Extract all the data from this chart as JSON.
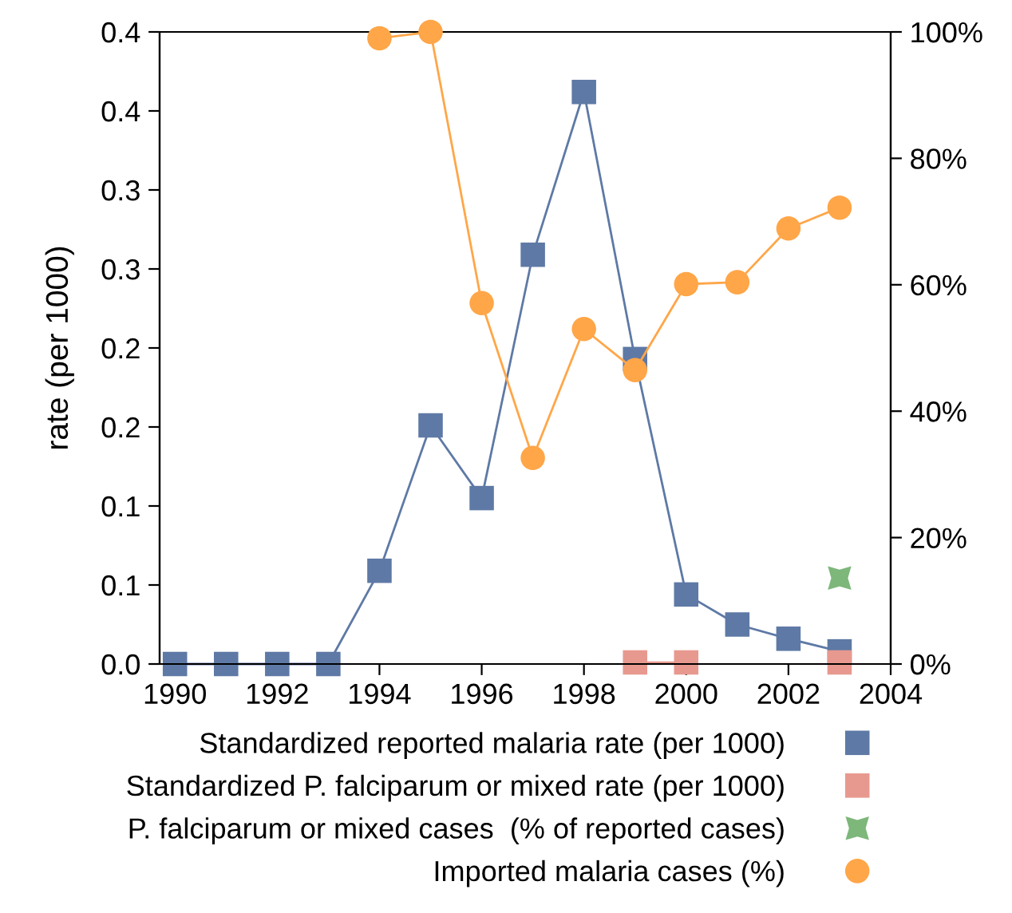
{
  "chart_data": {
    "type": "line",
    "ylabel": "rate (per 1000)",
    "x": [
      1990,
      1991,
      1992,
      1993,
      1994,
      1995,
      1996,
      1997,
      1998,
      1999,
      2000,
      2001,
      2002,
      2003
    ],
    "series": [
      {
        "name": "Standardized reported malaria rate (per 1000)",
        "color": "#5e79a5",
        "marker": "square",
        "values": [
          0,
          0,
          0,
          0,
          0.059,
          0.151,
          0.105,
          0.259,
          0.362,
          0.193,
          0.044,
          0.025,
          0.016,
          0.008
        ]
      },
      {
        "name": "Standardized P. falciparum or mixed rate (per 1000)",
        "color": "#e8998f",
        "marker": "square",
        "x": [
          1999,
          2000,
          2001,
          2002,
          2003
        ],
        "values": [
          0.001,
          0.001,
          null,
          null,
          0.001
        ]
      },
      {
        "name": "P. falciparum or mixed cases  (% of reported cases)",
        "color": "#7db77a",
        "marker": "star",
        "axis": "y2",
        "x": [
          2003
        ],
        "values": [
          13.6
        ]
      },
      {
        "name": "Imported malaria cases (%)",
        "color": "#ffa648",
        "marker": "circle",
        "axis": "y2",
        "x": [
          1994,
          1995,
          1996,
          1997,
          1998,
          1999,
          2000,
          2001,
          2002,
          2003
        ],
        "values": [
          99,
          100,
          57.1,
          32.6,
          53,
          46.5,
          60.1,
          60.4,
          68.9,
          72.2
        ]
      }
    ],
    "xlim": [
      1989.7,
      2004
    ],
    "xticks": [
      1990,
      1992,
      1994,
      1996,
      1998,
      2000,
      2002,
      2004
    ],
    "ylim": [
      0,
      0.4
    ],
    "yticks": [
      {
        "value": 0,
        "label": "0.0"
      },
      {
        "value": 0.05,
        "label": "0.1"
      },
      {
        "value": 0.1,
        "label": "0.1"
      },
      {
        "value": 0.15,
        "label": "0.2"
      },
      {
        "value": 0.2,
        "label": "0.2"
      },
      {
        "value": 0.25,
        "label": "0.3"
      },
      {
        "value": 0.3,
        "label": "0.3"
      },
      {
        "value": 0.35,
        "label": "0.4"
      },
      {
        "value": 0.4,
        "label": "0.4"
      }
    ],
    "y2lim": [
      0,
      100
    ],
    "y2ticks": [
      {
        "value": 0,
        "label": "0%"
      },
      {
        "value": 20,
        "label": "20%"
      },
      {
        "value": 40,
        "label": "40%"
      },
      {
        "value": 60,
        "label": "60%"
      },
      {
        "value": 80,
        "label": "80%"
      },
      {
        "value": 100,
        "label": "100%"
      }
    ],
    "legend": "bottom",
    "grid": false
  }
}
